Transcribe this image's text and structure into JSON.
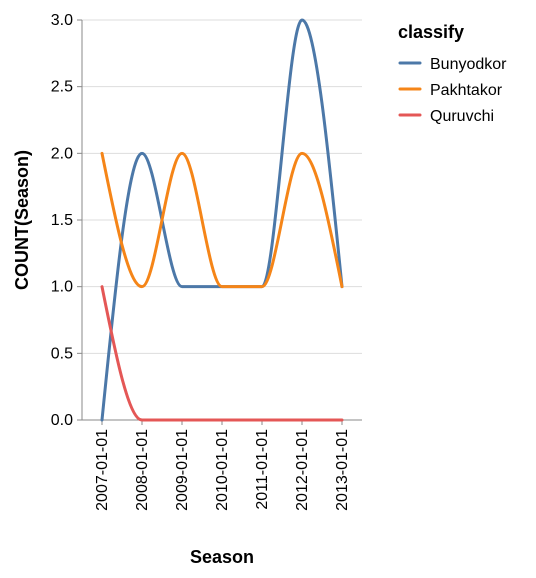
{
  "chart_data": {
    "type": "line",
    "interpolation": "monotone",
    "x": [
      "2007-01-01",
      "2008-01-01",
      "2009-01-01",
      "2010-01-01",
      "2011-01-01",
      "2012-01-01",
      "2013-01-01"
    ],
    "series": [
      {
        "name": "Bunyodkor",
        "color": "#4c78a8",
        "values": [
          0,
          2,
          1,
          1,
          1,
          3,
          1
        ]
      },
      {
        "name": "Pakhtakor",
        "color": "#f58518",
        "values": [
          2,
          1,
          2,
          1,
          1,
          2,
          1
        ]
      },
      {
        "name": "Quruvchi",
        "color": "#e45756",
        "values": [
          1,
          0,
          0,
          0,
          0,
          0,
          0
        ]
      }
    ],
    "xlabel": "Season",
    "ylabel": "COUNT(Season)",
    "ylim": [
      0,
      3
    ],
    "yticks": [
      "0.0",
      "0.5",
      "1.0",
      "1.5",
      "2.0",
      "2.5",
      "3.0"
    ],
    "grid": true,
    "legend": {
      "title": "classify",
      "position": "right"
    }
  }
}
